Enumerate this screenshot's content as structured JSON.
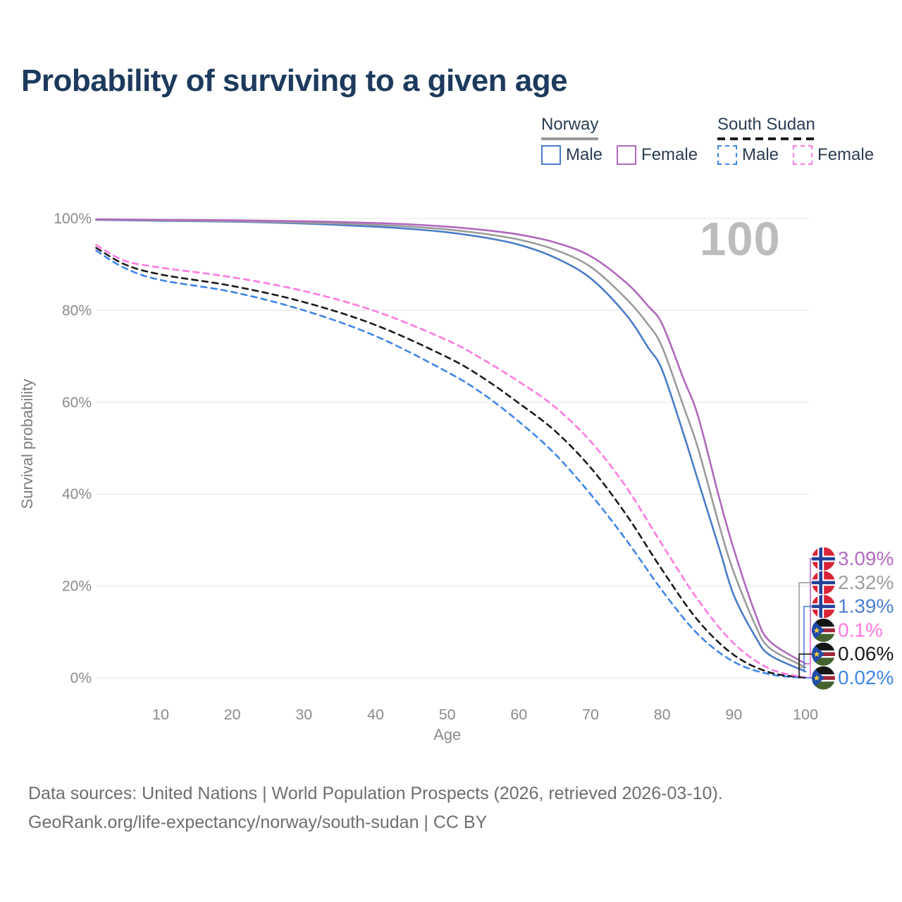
{
  "title": "Probability of surviving to a given age",
  "legend": {
    "groups": [
      {
        "id": "norway",
        "name": "Norway",
        "line_style": "solid",
        "line_color": "#9b9b9b",
        "items": [
          {
            "id": "male",
            "label": "Male",
            "color": "#4a7cc7"
          },
          {
            "id": "female",
            "label": "Female",
            "color": "#b168bd"
          }
        ]
      },
      {
        "id": "south-sudan",
        "name": "South Sudan",
        "line_style": "dashed",
        "line_color": "#1b1b1b",
        "items": [
          {
            "id": "male",
            "label": "Male",
            "color": "#3f86ea"
          },
          {
            "id": "female",
            "label": "Female",
            "color": "#ff7ae1"
          }
        ]
      }
    ]
  },
  "chart_data": {
    "type": "line",
    "title": "Probability of surviving to a given age",
    "xlabel": "Age",
    "ylabel": "Survival probability",
    "xlim": [
      0,
      100
    ],
    "ylim": [
      0,
      100
    ],
    "grid": "horizontal-only",
    "hover_age_label": "100",
    "x_ticks": [
      {
        "value": 10,
        "label": "10"
      },
      {
        "value": 20,
        "label": "20"
      },
      {
        "value": 30,
        "label": "30"
      },
      {
        "value": 40,
        "label": "40"
      },
      {
        "value": 50,
        "label": "50"
      },
      {
        "value": 60,
        "label": "60"
      },
      {
        "value": 70,
        "label": "70"
      },
      {
        "value": 80,
        "label": "80"
      },
      {
        "value": 90,
        "label": "90"
      },
      {
        "value": 100,
        "label": "100"
      }
    ],
    "y_ticks": [
      {
        "value": 0,
        "label": "0%"
      },
      {
        "value": 20,
        "label": "20%"
      },
      {
        "value": 40,
        "label": "40%"
      },
      {
        "value": 60,
        "label": "60%"
      },
      {
        "value": 80,
        "label": "80%"
      },
      {
        "value": 100,
        "label": "100%"
      }
    ],
    "series": [
      {
        "id": "norway-male",
        "name": "Norway Male",
        "color": "#4a7cc7",
        "dash": "solid",
        "flag": "norway-flag-icon",
        "points": [
          [
            1,
            99.7
          ],
          [
            10,
            99.5
          ],
          [
            20,
            99.3
          ],
          [
            30,
            98.9
          ],
          [
            40,
            98.2
          ],
          [
            45,
            97.7
          ],
          [
            50,
            97.0
          ],
          [
            55,
            95.9
          ],
          [
            60,
            94.3
          ],
          [
            65,
            91.5
          ],
          [
            70,
            87.0
          ],
          [
            75,
            79.0
          ],
          [
            78,
            72.0
          ],
          [
            80,
            67.0
          ],
          [
            83,
            53.0
          ],
          [
            85,
            43.0
          ],
          [
            88,
            28.0
          ],
          [
            90,
            18.0
          ],
          [
            93,
            9.0
          ],
          [
            95,
            5.0
          ],
          [
            100,
            1.39
          ]
        ]
      },
      {
        "id": "norway-total",
        "name": "Norway Both sexes",
        "color": "#9b9b9b",
        "dash": "solid",
        "flag": "norway-flag-icon",
        "points": [
          [
            1,
            99.8
          ],
          [
            10,
            99.6
          ],
          [
            20,
            99.4
          ],
          [
            30,
            99.1
          ],
          [
            40,
            98.6
          ],
          [
            45,
            98.2
          ],
          [
            50,
            97.6
          ],
          [
            55,
            96.7
          ],
          [
            60,
            95.4
          ],
          [
            65,
            93.2
          ],
          [
            70,
            89.5
          ],
          [
            75,
            82.5
          ],
          [
            78,
            77.0
          ],
          [
            80,
            72.0
          ],
          [
            83,
            59.0
          ],
          [
            85,
            50.0
          ],
          [
            88,
            33.0
          ],
          [
            90,
            23.0
          ],
          [
            93,
            11.5
          ],
          [
            95,
            6.5
          ],
          [
            100,
            2.32
          ]
        ]
      },
      {
        "id": "norway-female",
        "name": "Norway Female",
        "color": "#b168bd",
        "dash": "solid",
        "flag": "norway-flag-icon",
        "points": [
          [
            1,
            99.8
          ],
          [
            10,
            99.7
          ],
          [
            20,
            99.6
          ],
          [
            30,
            99.4
          ],
          [
            40,
            99.0
          ],
          [
            45,
            98.7
          ],
          [
            50,
            98.2
          ],
          [
            55,
            97.5
          ],
          [
            60,
            96.5
          ],
          [
            65,
            94.8
          ],
          [
            70,
            91.8
          ],
          [
            75,
            86.0
          ],
          [
            78,
            81.0
          ],
          [
            80,
            77.0
          ],
          [
            83,
            65.0
          ],
          [
            85,
            57.0
          ],
          [
            88,
            39.0
          ],
          [
            90,
            28.0
          ],
          [
            93,
            14.0
          ],
          [
            95,
            8.0
          ],
          [
            100,
            3.09
          ]
        ]
      },
      {
        "id": "south-sudan-male",
        "name": "South Sudan Male",
        "color": "#3f86ea",
        "dash": "dashed",
        "flag": "south-sudan-flag-icon",
        "points": [
          [
            1,
            93.0
          ],
          [
            5,
            89.2
          ],
          [
            10,
            86.6
          ],
          [
            20,
            84.0
          ],
          [
            30,
            80.0
          ],
          [
            40,
            74.4
          ],
          [
            50,
            66.6
          ],
          [
            55,
            61.8
          ],
          [
            60,
            55.8
          ],
          [
            65,
            48.8
          ],
          [
            70,
            40.0
          ],
          [
            75,
            30.0
          ],
          [
            80,
            19.0
          ],
          [
            85,
            9.5
          ],
          [
            90,
            3.5
          ],
          [
            95,
            0.8
          ],
          [
            100,
            0.02
          ]
        ]
      },
      {
        "id": "south-sudan-total",
        "name": "South Sudan Both sexes",
        "color": "#1b1b1b",
        "dash": "dashed",
        "flag": "south-sudan-flag-icon",
        "points": [
          [
            1,
            93.6
          ],
          [
            5,
            90.0
          ],
          [
            10,
            87.8
          ],
          [
            20,
            85.3
          ],
          [
            30,
            81.8
          ],
          [
            40,
            76.8
          ],
          [
            50,
            69.8
          ],
          [
            55,
            65.3
          ],
          [
            60,
            59.8
          ],
          [
            65,
            53.8
          ],
          [
            70,
            45.8
          ],
          [
            75,
            35.5
          ],
          [
            80,
            23.5
          ],
          [
            85,
            12.5
          ],
          [
            90,
            5.0
          ],
          [
            95,
            1.2
          ],
          [
            100,
            0.06
          ]
        ]
      },
      {
        "id": "south-sudan-female",
        "name": "South Sudan Female",
        "color": "#ff7ae1",
        "dash": "dashed",
        "flag": "south-sudan-flag-icon",
        "points": [
          [
            1,
            94.2
          ],
          [
            5,
            90.8
          ],
          [
            10,
            89.3
          ],
          [
            20,
            87.2
          ],
          [
            30,
            84.2
          ],
          [
            40,
            79.8
          ],
          [
            50,
            73.5
          ],
          [
            55,
            69.3
          ],
          [
            60,
            64.5
          ],
          [
            65,
            59.0
          ],
          [
            70,
            51.5
          ],
          [
            75,
            41.5
          ],
          [
            80,
            29.0
          ],
          [
            85,
            17.0
          ],
          [
            90,
            7.5
          ],
          [
            95,
            2.0
          ],
          [
            100,
            0.1
          ]
        ]
      }
    ],
    "end_labels": [
      {
        "series_id": "norway-female",
        "text": "3.09%",
        "color": "#b26bbf",
        "flag": "norway-flag-icon"
      },
      {
        "series_id": "norway-total",
        "text": "2.32%",
        "color": "#9e9e9e",
        "flag": "norway-flag-icon"
      },
      {
        "series_id": "norway-male",
        "text": "1.39%",
        "color": "#4d80d2",
        "flag": "norway-flag-icon"
      },
      {
        "series_id": "south-sudan-female",
        "text": "0.1%",
        "color": "#ff7ae1",
        "flag": "south-sudan-flag-icon"
      },
      {
        "series_id": "south-sudan-total",
        "text": "0.06%",
        "color": "#1b1b1b",
        "flag": "south-sudan-flag-icon"
      },
      {
        "series_id": "south-sudan-male",
        "text": "0.02%",
        "color": "#3f86ea",
        "flag": "south-sudan-flag-icon"
      }
    ]
  },
  "footer": {
    "line1": "Data sources: United Nations | World Population Prospects (2026, retrieved 2026-03-10).",
    "line2": "GeoRank.org/life-expectancy/norway/south-sudan | CC BY"
  }
}
